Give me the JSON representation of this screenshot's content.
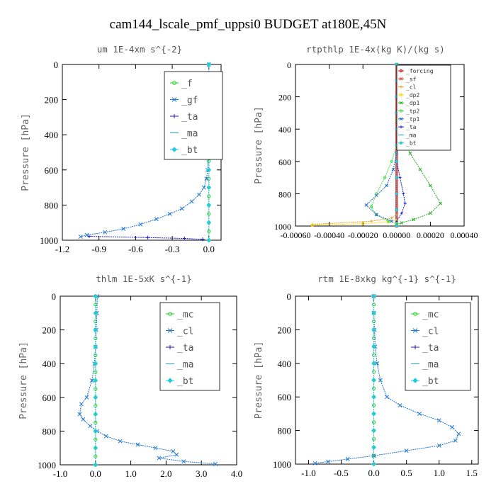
{
  "figure": {
    "title": "cam144_lscale_pmf_uppsi0  BUDGET at180E,45N"
  },
  "chart_data": [
    {
      "type": "line",
      "title": "um   1E-4xm  s^{-2}",
      "ylabel": "Pressure [hPa]",
      "xlim": [
        -1.2,
        0.1
      ],
      "ylim": [
        1000,
        0
      ],
      "xticks": [
        -1.2,
        -0.9,
        -0.6,
        -0.3,
        0.0
      ],
      "xtick_labels": [
        "-1.2",
        "-0.9",
        "-0.6",
        "-0.3",
        "0.0"
      ],
      "yticks": [
        0,
        200,
        400,
        600,
        800,
        1000
      ],
      "ytick_labels": [
        "0",
        "200",
        "400",
        "600",
        "800",
        "1000"
      ],
      "legend_position": "top-right",
      "series": [
        {
          "name": "_f",
          "color": "#2ecc2e",
          "marker": "circle",
          "x": [
            0,
            0,
            0,
            0,
            0,
            0,
            0,
            0,
            0,
            0,
            0,
            0,
            0,
            0,
            0,
            0,
            0,
            0,
            0,
            0,
            0
          ],
          "y": [
            0,
            50,
            100,
            150,
            200,
            250,
            300,
            350,
            400,
            450,
            500,
            550,
            600,
            650,
            700,
            750,
            800,
            850,
            900,
            950,
            1000
          ]
        },
        {
          "name": "_gf",
          "color": "#1e78d2",
          "marker": "x",
          "x": [
            0,
            0,
            0,
            0,
            0,
            -0.005,
            -0.01,
            -0.02,
            -0.04,
            -0.08,
            -0.14,
            -0.22,
            -0.32,
            -0.43,
            -0.56,
            -0.7,
            -0.85,
            -1.0,
            -1.05
          ],
          "y": [
            0,
            100,
            200,
            300,
            400,
            500,
            600,
            650,
            700,
            740,
            780,
            820,
            850,
            880,
            910,
            935,
            955,
            970,
            980
          ]
        },
        {
          "name": "_ta",
          "color": "#1a1acc",
          "marker": "plus",
          "x": [
            -0.98,
            -0.5,
            -0.2,
            -0.05
          ],
          "y": [
            978,
            985,
            990,
            995
          ]
        },
        {
          "name": "_ma",
          "color": "#20a0c0",
          "marker": "dash",
          "x": [],
          "y": []
        },
        {
          "name": "_bt",
          "color": "#22ccdd",
          "marker": "diamond",
          "x": [
            0,
            0,
            0,
            0,
            0,
            0,
            0,
            0,
            0,
            0,
            0
          ],
          "y": [
            0,
            100,
            200,
            300,
            400,
            500,
            600,
            700,
            800,
            900,
            1000
          ]
        }
      ]
    },
    {
      "type": "line",
      "title": "rtpthlp   1E-4x(kg K)/(kg s)",
      "ylabel": "Pressure [hPa]",
      "xlim": [
        -0.0006,
        0.0004
      ],
      "ylim": [
        1000,
        0
      ],
      "xticks": [
        -0.0006,
        -0.0004,
        -0.0002,
        0.0,
        0.0002,
        0.0004
      ],
      "xtick_labels": [
        "-0.00060",
        "-0.00040",
        "-0.00020",
        "0.00000",
        "0.00020",
        "0.00040"
      ],
      "yticks": [
        0,
        200,
        400,
        600,
        800,
        1000
      ],
      "ytick_labels": [
        "0",
        "200",
        "400",
        "600",
        "800",
        "1000"
      ],
      "legend_position": "top-right",
      "series": [
        {
          "name": "_forcing",
          "color": "#cc1111",
          "marker": "circle",
          "x": [
            0,
            0,
            0,
            0,
            0,
            0,
            0,
            0,
            0,
            0,
            0
          ],
          "y": [
            0,
            100,
            200,
            300,
            400,
            500,
            600,
            700,
            800,
            900,
            1000
          ]
        },
        {
          "name": "_sf",
          "color": "#e03030",
          "marker": "x",
          "x": [
            0,
            0,
            0,
            0,
            0,
            0,
            0,
            0,
            0,
            0,
            0
          ],
          "y": [
            0,
            100,
            200,
            300,
            400,
            500,
            600,
            700,
            800,
            900,
            1000
          ]
        },
        {
          "name": "_cl",
          "color": "#e8a020",
          "marker": "plus",
          "x": [
            -0.0005,
            -0.00015,
            -3e-05,
            0.0
          ],
          "y": [
            990,
            970,
            950,
            930
          ]
        },
        {
          "name": "_dp2",
          "color": "#ffd700",
          "marker": "circle",
          "x": [
            -0.0005,
            -0.0002,
            -5e-05,
            0.0
          ],
          "y": [
            995,
            985,
            975,
            965
          ]
        },
        {
          "name": "_dp1",
          "color": "#22aa22",
          "marker": "x",
          "x": [
            0,
            0,
            3e-05,
            8e-05,
            0.00014,
            0.0002,
            0.00026,
            0.0002,
            0.0001,
            3e-05,
            0.0
          ],
          "y": [
            0,
            350,
            450,
            550,
            650,
            750,
            860,
            920,
            960,
            980,
            990
          ]
        },
        {
          "name": "_tp2",
          "color": "#44dd44",
          "marker": "circle",
          "x": [
            0,
            -3e-05,
            -7e-05,
            -0.00012,
            -0.00015,
            -0.00012,
            -5e-05,
            0.0
          ],
          "y": [
            500,
            600,
            700,
            800,
            880,
            930,
            970,
            985
          ]
        },
        {
          "name": "_tp1",
          "color": "#2266cc",
          "marker": "x",
          "x": [
            0,
            -2e-05,
            -6e-05,
            -0.00012,
            -0.00018,
            -0.00012,
            -3e-05
          ],
          "y": [
            550,
            650,
            750,
            810,
            870,
            930,
            970
          ]
        },
        {
          "name": "_ta",
          "color": "#1a1acc",
          "marker": "plus",
          "x": [
            0,
            2e-05,
            4e-05,
            5e-05,
            3e-05,
            0.0
          ],
          "y": [
            600,
            700,
            800,
            860,
            920,
            970
          ]
        },
        {
          "name": "_ma",
          "color": "#20a0c0",
          "marker": "dash",
          "x": [],
          "y": []
        },
        {
          "name": "_bt",
          "color": "#22ccdd",
          "marker": "diamond",
          "x": [
            0,
            0,
            0,
            0,
            0,
            0,
            0,
            0,
            0,
            0,
            0
          ],
          "y": [
            0,
            100,
            200,
            300,
            400,
            500,
            600,
            700,
            800,
            900,
            1000
          ]
        }
      ]
    },
    {
      "type": "line",
      "title": "thlm   1E-5xK  s^{-1}",
      "ylabel": "Pressure [hPa]",
      "xlim": [
        -1.0,
        4.0
      ],
      "ylim": [
        1000,
        0
      ],
      "xticks": [
        -1.0,
        0.0,
        1.0,
        2.0,
        3.0,
        4.0
      ],
      "xtick_labels": [
        "-1.0",
        "0.0",
        "1.0",
        "2.0",
        "3.0",
        "4.0"
      ],
      "yticks": [
        0,
        200,
        400,
        600,
        800,
        1000
      ],
      "ytick_labels": [
        "0",
        "200",
        "400",
        "600",
        "800",
        "1000"
      ],
      "legend_position": "top-right",
      "series": [
        {
          "name": "_mc",
          "color": "#2ecc2e",
          "marker": "circle",
          "x": [
            0,
            0,
            0,
            0,
            0,
            0,
            0,
            0,
            0,
            0,
            0,
            0,
            0,
            0,
            0,
            0,
            0,
            0,
            0,
            0,
            0
          ],
          "y": [
            0,
            50,
            100,
            150,
            200,
            250,
            300,
            350,
            400,
            450,
            500,
            550,
            600,
            650,
            700,
            750,
            800,
            850,
            900,
            950,
            1000
          ]
        },
        {
          "name": "_cl",
          "color": "#1e78d2",
          "marker": "x",
          "x": [
            0.05,
            0.04,
            0.02,
            0.0,
            -0.03,
            -0.1,
            -0.25,
            -0.4,
            -0.45,
            -0.35,
            -0.15,
            0.05,
            0.3,
            0.7,
            1.2,
            1.7,
            2.2,
            2.3,
            1.8,
            2.5,
            3.4
          ],
          "y": [
            0,
            100,
            200,
            300,
            400,
            500,
            600,
            640,
            700,
            730,
            770,
            800,
            830,
            860,
            880,
            900,
            920,
            940,
            960,
            980,
            995
          ]
        },
        {
          "name": "_ta",
          "color": "#1a1acc",
          "marker": "plus",
          "x": [],
          "y": []
        },
        {
          "name": "_ma",
          "color": "#20a0c0",
          "marker": "dash",
          "x": [],
          "y": []
        },
        {
          "name": "_bt",
          "color": "#22ccdd",
          "marker": "diamond",
          "x": [
            0,
            0,
            0,
            0,
            0,
            0,
            0,
            0,
            0,
            0,
            0
          ],
          "y": [
            0,
            100,
            200,
            300,
            400,
            500,
            600,
            700,
            800,
            900,
            1000
          ]
        }
      ]
    },
    {
      "type": "line",
      "title": "rtm   1E-8xkg kg^{-1}  s^{-1}",
      "ylabel": "Pressure [hPa]",
      "xlim": [
        -1.2,
        1.6
      ],
      "ylim": [
        1000,
        0
      ],
      "xticks": [
        -1.0,
        -0.5,
        0.0,
        0.5,
        1.0,
        1.5
      ],
      "xtick_labels": [
        "-1.0",
        "-0.5",
        "0.0",
        "0.5",
        "1.0",
        "1.5"
      ],
      "yticks": [
        0,
        200,
        400,
        600,
        800,
        1000
      ],
      "ytick_labels": [
        "0",
        "200",
        "400",
        "600",
        "800",
        "1000"
      ],
      "legend_position": "top-right",
      "series": [
        {
          "name": "_mc",
          "color": "#2ecc2e",
          "marker": "circle",
          "x": [
            0,
            0,
            0,
            0,
            0,
            0,
            0,
            0,
            0,
            0,
            0,
            0,
            0,
            0,
            0,
            0,
            0,
            0,
            0,
            0,
            0
          ],
          "y": [
            0,
            50,
            100,
            150,
            200,
            250,
            300,
            350,
            400,
            450,
            500,
            550,
            600,
            650,
            700,
            750,
            800,
            850,
            900,
            950,
            1000
          ]
        },
        {
          "name": "_cl",
          "color": "#1e78d2",
          "marker": "x",
          "x": [
            0,
            0,
            0.01,
            0.02,
            0.05,
            0.1,
            0.2,
            0.4,
            0.7,
            1.0,
            1.2,
            1.3,
            1.25,
            1.0,
            0.5,
            0.0,
            -0.4,
            -0.7,
            -0.9
          ],
          "y": [
            0,
            100,
            200,
            300,
            400,
            500,
            600,
            650,
            700,
            740,
            780,
            820,
            860,
            890,
            920,
            950,
            970,
            985,
            995
          ]
        },
        {
          "name": "_ta",
          "color": "#1a1acc",
          "marker": "plus",
          "x": [],
          "y": []
        },
        {
          "name": "_ma",
          "color": "#20a0c0",
          "marker": "dash",
          "x": [],
          "y": []
        },
        {
          "name": "_bt",
          "color": "#22ccdd",
          "marker": "diamond",
          "x": [
            0,
            0,
            0,
            0,
            0,
            0,
            0,
            0,
            0,
            0,
            0
          ],
          "y": [
            0,
            100,
            200,
            300,
            400,
            500,
            600,
            700,
            800,
            900,
            1000
          ]
        }
      ]
    }
  ]
}
